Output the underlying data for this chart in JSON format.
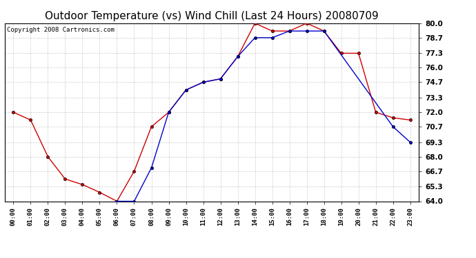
{
  "title": "Outdoor Temperature (vs) Wind Chill (Last 24 Hours) 20080709",
  "copyright": "Copyright 2008 Cartronics.com",
  "hours": [
    "00:00",
    "01:00",
    "02:00",
    "03:00",
    "04:00",
    "05:00",
    "06:00",
    "07:00",
    "08:00",
    "09:00",
    "10:00",
    "11:00",
    "12:00",
    "13:00",
    "14:00",
    "15:00",
    "16:00",
    "17:00",
    "18:00",
    "19:00",
    "20:00",
    "21:00",
    "22:00",
    "23:00"
  ],
  "temp": [
    72.0,
    71.3,
    68.0,
    66.0,
    65.5,
    64.8,
    64.0,
    66.7,
    70.7,
    72.0,
    74.0,
    74.7,
    75.0,
    77.0,
    80.0,
    79.3,
    79.3,
    80.0,
    79.3,
    77.3,
    77.3,
    72.0,
    71.5,
    71.3
  ],
  "windchill": [
    null,
    null,
    null,
    null,
    null,
    null,
    64.0,
    64.0,
    67.0,
    72.0,
    74.0,
    74.7,
    75.0,
    77.0,
    78.7,
    78.7,
    79.3,
    79.3,
    79.3,
    null,
    null,
    null,
    70.7,
    69.3
  ],
  "ylim": [
    64.0,
    80.0
  ],
  "yticks": [
    64.0,
    65.3,
    66.7,
    68.0,
    69.3,
    70.7,
    72.0,
    73.3,
    74.7,
    76.0,
    77.3,
    78.7,
    80.0
  ],
  "temp_color": "#cc0000",
  "windchill_color": "#0000cc",
  "grid_color": "#cccccc",
  "bg_color": "#ffffff",
  "plot_bg": "#ffffff",
  "title_fontsize": 11,
  "copyright_fontsize": 6.5
}
